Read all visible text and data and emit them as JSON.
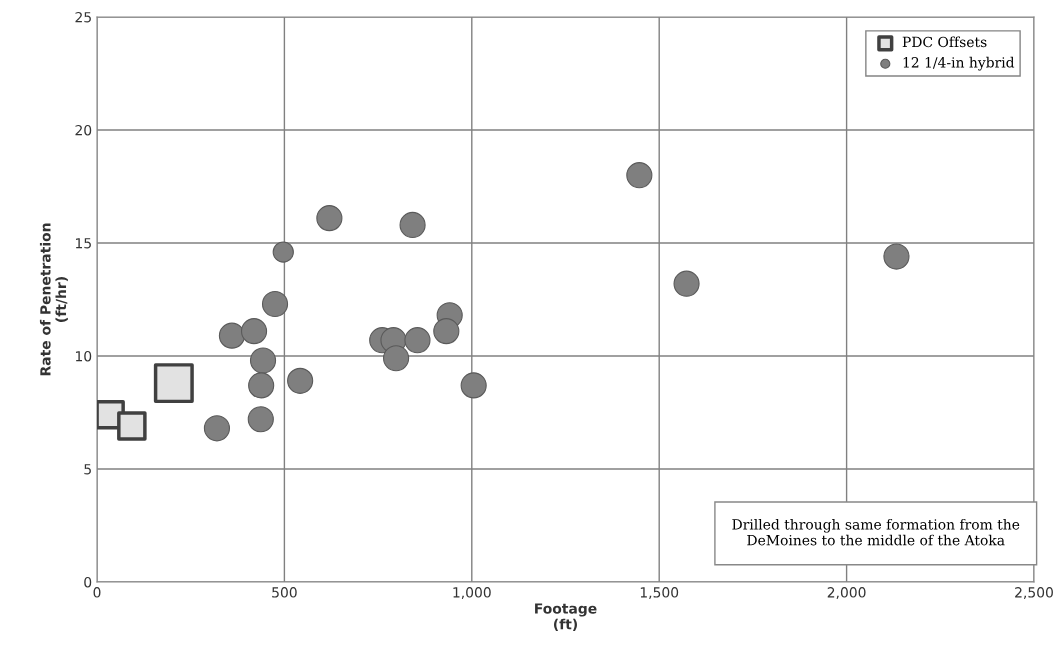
{
  "chart_data": {
    "type": "bubble",
    "xlabel": "Footage\n(ft)",
    "ylabel": "Rate of Penetration\n(ft/hr)",
    "xlim": [
      0,
      2500
    ],
    "ylim": [
      0,
      25
    ],
    "xticks": [
      0,
      500,
      {
        "value": 1000,
        "label": "1,000"
      },
      {
        "value": 1500,
        "label": "1,500"
      },
      {
        "value": 2000,
        "label": "2,000"
      },
      {
        "value": 2500,
        "label": "2,500"
      }
    ],
    "yticks": [
      0,
      5,
      10,
      15,
      20,
      25
    ],
    "grid": true,
    "legend": "top right",
    "series": [
      {
        "name": "PDC Offsets",
        "color": "#e2e2e2",
        "marker": "square",
        "x": [
          35,
          93,
          205
        ],
        "values": [
          7.4,
          6.9,
          8.8
        ],
        "sizes": [
          0.51,
          0.51,
          1
        ]
      },
      {
        "name": "12 1/4-in hybrid",
        "color": "#7f7f7f",
        "marker": "circle",
        "x": [
          620,
          842,
          497,
          475,
          360,
          419,
          443,
          438,
          542,
          437,
          320,
          761,
          791,
          798,
          855,
          941,
          932,
          1005,
          1447,
          1573,
          2133
        ],
        "values": [
          16.1,
          15.8,
          14.6,
          12.3,
          10.9,
          11.1,
          9.8,
          8.7,
          8.9,
          7.2,
          6.8,
          10.7,
          10.7,
          9.9,
          10.7,
          11.8,
          11.1,
          8.7,
          18.0,
          13.2,
          14.4
        ],
        "sizes": [
          0.37,
          0.37,
          0.24,
          0.37,
          0.37,
          0.37,
          0.37,
          0.37,
          0.37,
          0.37,
          0.37,
          0.37,
          0.37,
          0.37,
          0.37,
          0.37,
          0.37,
          0.37,
          0.37,
          0.37,
          0.37
        ]
      }
    ],
    "annotations": [
      "Drilled through same formation from the\nDeMoines to the middle of the Atoka"
    ]
  }
}
